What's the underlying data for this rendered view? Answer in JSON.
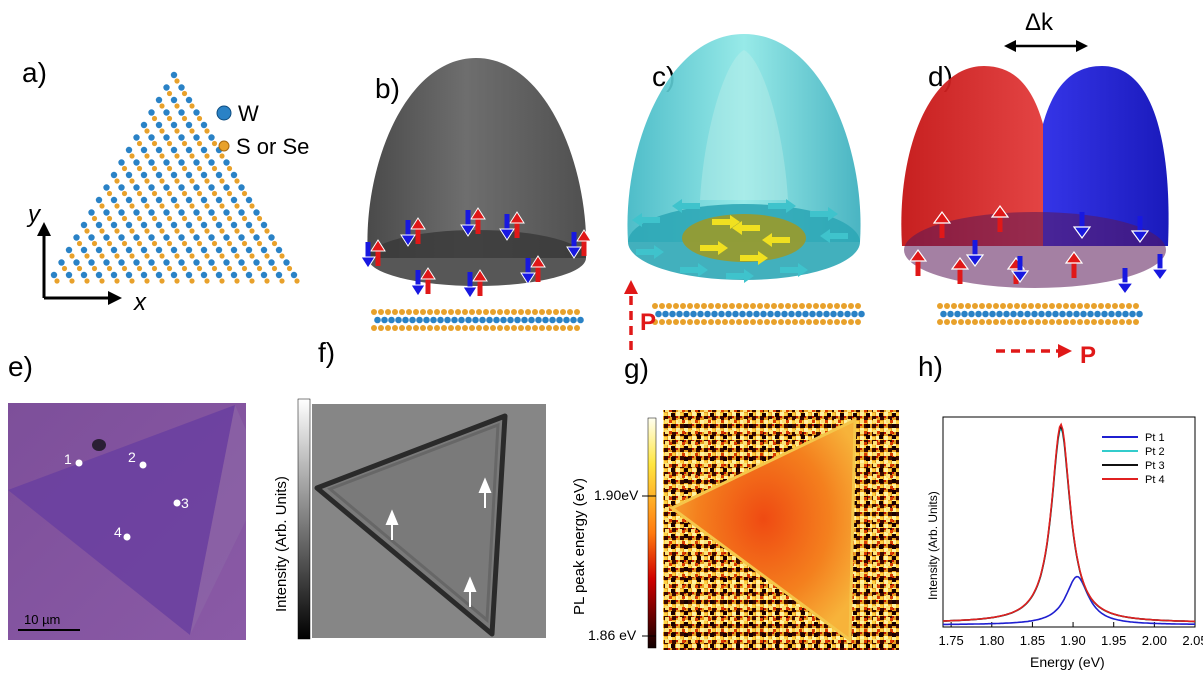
{
  "panels": {
    "a": {
      "label": "a)",
      "legend": {
        "atom1": "W",
        "atom2": "S or Se",
        "atom1_color": "#2a82c6",
        "atom2_color": "#e8a12b"
      },
      "axes": {
        "y": "y",
        "x": "x"
      }
    },
    "b": {
      "label": "b)"
    },
    "c": {
      "label": "c)",
      "polarization": "P"
    },
    "d": {
      "label": "d)",
      "shift": "Δk",
      "polarization": "P"
    },
    "e": {
      "label": "e)",
      "points": [
        "1",
        "2",
        "3",
        "4"
      ],
      "scalebar": "10 µm"
    },
    "f": {
      "label": "f)",
      "colorbar_label": "Intensity (Arb. Units)"
    },
    "g": {
      "label": "g)",
      "colorbar_label": "PL peak energy (eV)",
      "ticks": [
        "1.90eV",
        "1.86 eV"
      ]
    },
    "h": {
      "label": "h)"
    }
  },
  "chart_data": {
    "type": "line",
    "xlabel": "Energy (eV)",
    "ylabel": "Intensity (Arb. Units)",
    "xlim": [
      1.74,
      2.05
    ],
    "ylim": [
      0,
      1.0
    ],
    "xticks": [
      "1.75",
      "1.80",
      "1.85",
      "1.90",
      "1.95",
      "2.00",
      "2.05"
    ],
    "legend_position": "top-right",
    "series": [
      {
        "name": "Pt 1",
        "color": "#1f1fd0",
        "center": 1.905,
        "width": 0.034,
        "peak": 0.23,
        "baseline": 0.01
      },
      {
        "name": "Pt 2",
        "color": "#33cccc",
        "center": 1.885,
        "width": 0.028,
        "peak": 0.925,
        "baseline": 0.02
      },
      {
        "name": "Pt 3",
        "color": "#111111",
        "center": 1.885,
        "width": 0.028,
        "peak": 0.935,
        "baseline": 0.02
      },
      {
        "name": "Pt 4",
        "color": "#e02020",
        "center": 1.885,
        "width": 0.028,
        "peak": 0.945,
        "baseline": 0.02
      }
    ]
  }
}
